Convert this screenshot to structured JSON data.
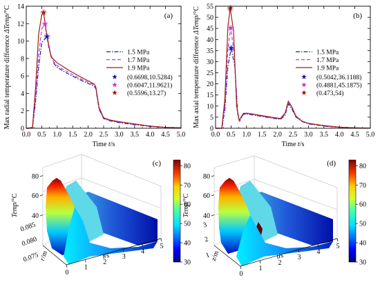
{
  "chart_data": [
    {
      "type": "line",
      "panel": "(a)",
      "xlabel_pre": "Time ",
      "xlabel_var": "t",
      "xlabel_unit": "/s",
      "ylabel_pre": "Max radial temperature difference ",
      "ylabel_var": "ΔTemp",
      "ylabel_unit": "/°C",
      "xlim": [
        0,
        5
      ],
      "ylim": [
        0,
        14
      ],
      "xticks": [
        "0.0",
        "0.5",
        "1.0",
        "1.5",
        "2.0",
        "2.5",
        "3.0",
        "3.5",
        "4.0",
        "4.5",
        "5.0"
      ],
      "yticks": [
        "0",
        "2",
        "4",
        "6",
        "8",
        "10",
        "12",
        "14"
      ],
      "legend_position": "right",
      "series": [
        {
          "name": "1.5 MPa",
          "color": "#1a1aa6",
          "dash": "6,2,1.5,2",
          "points": [
            [
              0,
              0
            ],
            [
              0.05,
              0
            ],
            [
              0.2,
              0.05
            ],
            [
              0.3,
              3
            ],
            [
              0.4,
              7
            ],
            [
              0.5,
              9.8
            ],
            [
              0.6698,
              10.53
            ],
            [
              0.78,
              8.6
            ],
            [
              0.9,
              7.4
            ],
            [
              1.0,
              7.0
            ],
            [
              1.2,
              6.55
            ],
            [
              1.4,
              6.15
            ],
            [
              1.6,
              5.8
            ],
            [
              1.8,
              5.45
            ],
            [
              2.0,
              5.15
            ],
            [
              2.2,
              4.8
            ],
            [
              2.25,
              4.5
            ],
            [
              2.35,
              2.2
            ],
            [
              2.5,
              1.1
            ],
            [
              2.7,
              0.85
            ],
            [
              3.0,
              0.65
            ],
            [
              3.5,
              0.4
            ],
            [
              4.0,
              0.2
            ],
            [
              4.5,
              0.1
            ],
            [
              5.0,
              0.05
            ]
          ]
        },
        {
          "name": "1.7 MPa",
          "color": "#c03bd8",
          "dash": "5,3",
          "points": [
            [
              0,
              0
            ],
            [
              0.05,
              0
            ],
            [
              0.2,
              0.05
            ],
            [
              0.3,
              3.4
            ],
            [
              0.4,
              8.4
            ],
            [
              0.5,
              11.4
            ],
            [
              0.6047,
              11.96
            ],
            [
              0.72,
              9.3
            ],
            [
              0.85,
              7.8
            ],
            [
              1.0,
              7.2
            ],
            [
              1.2,
              6.75
            ],
            [
              1.4,
              6.35
            ],
            [
              1.6,
              5.95
            ],
            [
              1.8,
              5.6
            ],
            [
              2.0,
              5.3
            ],
            [
              2.2,
              4.95
            ],
            [
              2.25,
              4.6
            ],
            [
              2.35,
              2.3
            ],
            [
              2.5,
              1.15
            ],
            [
              2.7,
              0.9
            ],
            [
              3.0,
              0.7
            ],
            [
              3.5,
              0.45
            ],
            [
              4.0,
              0.22
            ],
            [
              4.5,
              0.1
            ],
            [
              5.0,
              0.05
            ]
          ]
        },
        {
          "name": "1.9 MPa",
          "color": "#a01a14",
          "dash": "",
          "points": [
            [
              0,
              0
            ],
            [
              0.05,
              0
            ],
            [
              0.2,
              0.1
            ],
            [
              0.3,
              4.5
            ],
            [
              0.4,
              10.8
            ],
            [
              0.5,
              13.0
            ],
            [
              0.5596,
              13.27
            ],
            [
              0.65,
              11.0
            ],
            [
              0.8,
              8.2
            ],
            [
              1.0,
              7.5
            ],
            [
              1.2,
              7.05
            ],
            [
              1.4,
              6.6
            ],
            [
              1.6,
              6.2
            ],
            [
              1.8,
              5.8
            ],
            [
              2.0,
              5.45
            ],
            [
              2.2,
              5.05
            ],
            [
              2.25,
              4.7
            ],
            [
              2.35,
              2.4
            ],
            [
              2.5,
              1.2
            ],
            [
              2.7,
              0.95
            ],
            [
              3.0,
              0.75
            ],
            [
              3.5,
              0.5
            ],
            [
              4.0,
              0.25
            ],
            [
              4.5,
              0.1
            ],
            [
              5.0,
              0.05
            ]
          ]
        }
      ],
      "markers": [
        {
          "label": "(0.6698,10.5284)",
          "x": 0.6698,
          "y": 10.5284,
          "color": "#1a1aa6"
        },
        {
          "label": "(0.6047,11.9621)",
          "x": 0.6047,
          "y": 11.9621,
          "color": "#c03bd8"
        },
        {
          "label": "(0.5596,13.27)",
          "x": 0.5596,
          "y": 13.27,
          "color": "#a01a14"
        }
      ]
    },
    {
      "type": "line",
      "panel": "(b)",
      "xlabel_pre": "Time ",
      "xlabel_var": "t",
      "xlabel_unit": "/s",
      "ylabel_pre": "Max axial temperature difference ",
      "ylabel_var": "ΔTemp",
      "ylabel_unit": "/°C",
      "xlim": [
        0,
        5
      ],
      "ylim": [
        0,
        55
      ],
      "xticks": [
        "0.0",
        "0.5",
        "1.0",
        "1.5",
        "2.0",
        "2.5",
        "3.0",
        "3.5",
        "4.0",
        "4.5",
        "5.0"
      ],
      "yticks": [
        "0",
        "5",
        "10",
        "15",
        "20",
        "25",
        "30",
        "35",
        "40",
        "45",
        "50",
        "55"
      ],
      "legend_position": "right",
      "series": [
        {
          "name": "1.5 MPa",
          "color": "#1a1aa6",
          "dash": "6,2,1.5,2",
          "points": [
            [
              0,
              0
            ],
            [
              0.2,
              0
            ],
            [
              0.3,
              8
            ],
            [
              0.4,
              28
            ],
            [
              0.5042,
              36.12
            ],
            [
              0.62,
              28
            ],
            [
              0.72,
              6
            ],
            [
              0.78,
              3.2
            ],
            [
              0.9,
              6.3
            ],
            [
              1.0,
              6.4
            ],
            [
              1.2,
              6.0
            ],
            [
              1.5,
              5.3
            ],
            [
              1.8,
              4.6
            ],
            [
              2.1,
              4.0
            ],
            [
              2.25,
              6
            ],
            [
              2.35,
              11.0
            ],
            [
              2.45,
              9
            ],
            [
              2.6,
              5
            ],
            [
              2.8,
              3.0
            ],
            [
              3.0,
              2.0
            ],
            [
              3.5,
              1.0
            ],
            [
              4.0,
              0.4
            ],
            [
              4.5,
              0.15
            ],
            [
              5.0,
              0.05
            ]
          ]
        },
        {
          "name": "1.7 MPa",
          "color": "#c03bd8",
          "dash": "5,3",
          "points": [
            [
              0,
              0
            ],
            [
              0.2,
              0
            ],
            [
              0.3,
              10
            ],
            [
              0.4,
              36
            ],
            [
              0.4881,
              45.19
            ],
            [
              0.6,
              34
            ],
            [
              0.7,
              8
            ],
            [
              0.78,
              3.4
            ],
            [
              0.9,
              6.5
            ],
            [
              1.0,
              6.6
            ],
            [
              1.2,
              6.2
            ],
            [
              1.5,
              5.5
            ],
            [
              1.8,
              4.8
            ],
            [
              2.1,
              4.2
            ],
            [
              2.25,
              6.5
            ],
            [
              2.35,
              11.6
            ],
            [
              2.45,
              9.5
            ],
            [
              2.6,
              5.2
            ],
            [
              2.8,
              3.1
            ],
            [
              3.0,
              2.1
            ],
            [
              3.5,
              1.1
            ],
            [
              4.0,
              0.45
            ],
            [
              4.5,
              0.15
            ],
            [
              5.0,
              0.05
            ]
          ]
        },
        {
          "name": "1.9 MPa",
          "color": "#a01a14",
          "dash": "",
          "points": [
            [
              0,
              0
            ],
            [
              0.2,
              0
            ],
            [
              0.3,
              13
            ],
            [
              0.4,
              46
            ],
            [
              0.473,
              54
            ],
            [
              0.58,
              44
            ],
            [
              0.68,
              10
            ],
            [
              0.76,
              3.6
            ],
            [
              0.9,
              6.7
            ],
            [
              1.0,
              6.8
            ],
            [
              1.2,
              6.4
            ],
            [
              1.5,
              5.7
            ],
            [
              1.8,
              5.0
            ],
            [
              2.1,
              4.4
            ],
            [
              2.25,
              7
            ],
            [
              2.35,
              12.2
            ],
            [
              2.45,
              10
            ],
            [
              2.6,
              5.4
            ],
            [
              2.8,
              3.2
            ],
            [
              3.0,
              2.2
            ],
            [
              3.5,
              1.2
            ],
            [
              4.0,
              0.5
            ],
            [
              4.5,
              0.2
            ],
            [
              5.0,
              0.05
            ]
          ]
        }
      ],
      "markers": [
        {
          "label": "(0.5042,36.1188)",
          "x": 0.5042,
          "y": 36.1188,
          "color": "#1a1aa6"
        },
        {
          "label": "(0.4881,45.1875)",
          "x": 0.4881,
          "y": 45.1875,
          "color": "#c03bd8"
        },
        {
          "label": "(0.473,54)",
          "x": 0.473,
          "y": 54,
          "color": "#a01a14"
        }
      ]
    },
    {
      "type": "heatmap",
      "panel": "(c)",
      "zlabel_var": "Temp",
      "zlabel_unit": "/°C",
      "xlabel_var": "t",
      "xlabel_unit": "/s",
      "ylabel_var": "r",
      "ylabel_unit": "/m",
      "zticks": [
        "40",
        "60",
        "80"
      ],
      "xticks": [
        "0",
        "1",
        "2",
        "3",
        "4",
        "5"
      ],
      "yticks": [
        "0.075",
        "0.080",
        "0.085"
      ],
      "colorbar_ticks": [
        "80",
        "70",
        "60",
        "50",
        "40",
        "30"
      ],
      "colorbar_range": [
        30,
        83
      ]
    },
    {
      "type": "heatmap",
      "panel": "(d)",
      "zlabel_var": "Temp",
      "zlabel_unit": "/°C",
      "xlabel_var": "t",
      "xlabel_unit": "/s",
      "ylabel_var": "z",
      "ylabel_unit": "/m",
      "zticks": [
        "40",
        "60",
        "80"
      ],
      "xticks": [
        "0",
        "1",
        "2",
        "3",
        "4",
        "5"
      ],
      "yticks": [
        "1",
        "2",
        "3"
      ],
      "colorbar_ticks": [
        "80",
        "70",
        "60",
        "50",
        "40",
        "30"
      ],
      "colorbar_range": [
        30,
        83
      ]
    }
  ]
}
